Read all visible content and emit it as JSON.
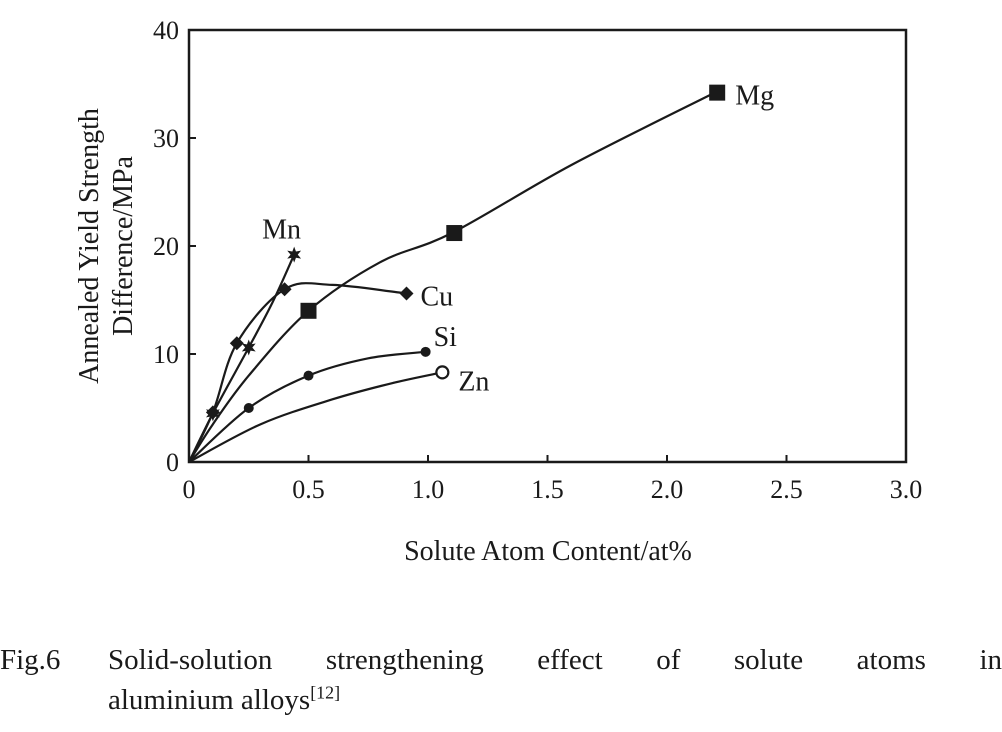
{
  "chart_data": {
    "type": "line",
    "xlabel": "Solute Atom Content/at%",
    "ylabel_lines": [
      "Annealed Yield Strength",
      "Difference/MPa"
    ],
    "xlim": [
      0,
      3.0
    ],
    "ylim": [
      0,
      40
    ],
    "x_ticks": [
      "0",
      "0.5",
      "1.0",
      "1.5",
      "2.0",
      "2.5",
      "3.0"
    ],
    "y_ticks": [
      "0",
      "10",
      "20",
      "30",
      "40"
    ],
    "grid": false,
    "series": [
      {
        "name": "Mg",
        "marker": "square",
        "curve": [
          [
            0,
            0
          ],
          [
            0.1,
            3.5
          ],
          [
            0.25,
            8
          ],
          [
            0.5,
            14
          ],
          [
            0.8,
            18.5
          ],
          [
            1.1,
            21.2
          ],
          [
            1.6,
            27.5
          ],
          [
            2.2,
            34.2
          ]
        ],
        "points": [
          [
            0.5,
            14
          ],
          [
            1.11,
            21.2
          ],
          [
            2.21,
            34.2
          ]
        ]
      },
      {
        "name": "Mn",
        "marker": "star",
        "curve": [
          [
            0,
            0
          ],
          [
            0.1,
            4.5
          ],
          [
            0.25,
            10.6
          ],
          [
            0.35,
            14.8
          ],
          [
            0.44,
            19.2
          ]
        ],
        "points": [
          [
            0.1,
            4.5
          ],
          [
            0.25,
            10.6
          ],
          [
            0.44,
            19.2
          ]
        ]
      },
      {
        "name": "Cu",
        "marker": "diamond",
        "curve": [
          [
            0,
            0
          ],
          [
            0.1,
            4.6
          ],
          [
            0.2,
            11
          ],
          [
            0.4,
            16
          ],
          [
            0.6,
            16.4
          ],
          [
            0.91,
            15.6
          ]
        ],
        "points": [
          [
            0.1,
            4.6
          ],
          [
            0.2,
            11
          ],
          [
            0.4,
            16
          ],
          [
            0.91,
            15.6
          ]
        ]
      },
      {
        "name": "Si",
        "marker": "circle-filled",
        "curve": [
          [
            0,
            0
          ],
          [
            0.25,
            5
          ],
          [
            0.5,
            8
          ],
          [
            0.75,
            9.6
          ],
          [
            0.99,
            10.2
          ]
        ],
        "points": [
          [
            0.25,
            5
          ],
          [
            0.5,
            8
          ],
          [
            0.99,
            10.2
          ]
        ]
      },
      {
        "name": "Zn",
        "marker": "circle-open",
        "curve": [
          [
            0,
            0
          ],
          [
            0.3,
            3.5
          ],
          [
            0.6,
            5.8
          ],
          [
            0.85,
            7.3
          ],
          [
            1.06,
            8.3
          ]
        ],
        "points": [
          [
            1.06,
            8.3
          ]
        ]
      }
    ]
  },
  "caption": {
    "number": "Fig.6",
    "line1": "Solid-solution strengthening effect of solute atoms in",
    "line2": "aluminium alloys",
    "ref": "[12]"
  }
}
